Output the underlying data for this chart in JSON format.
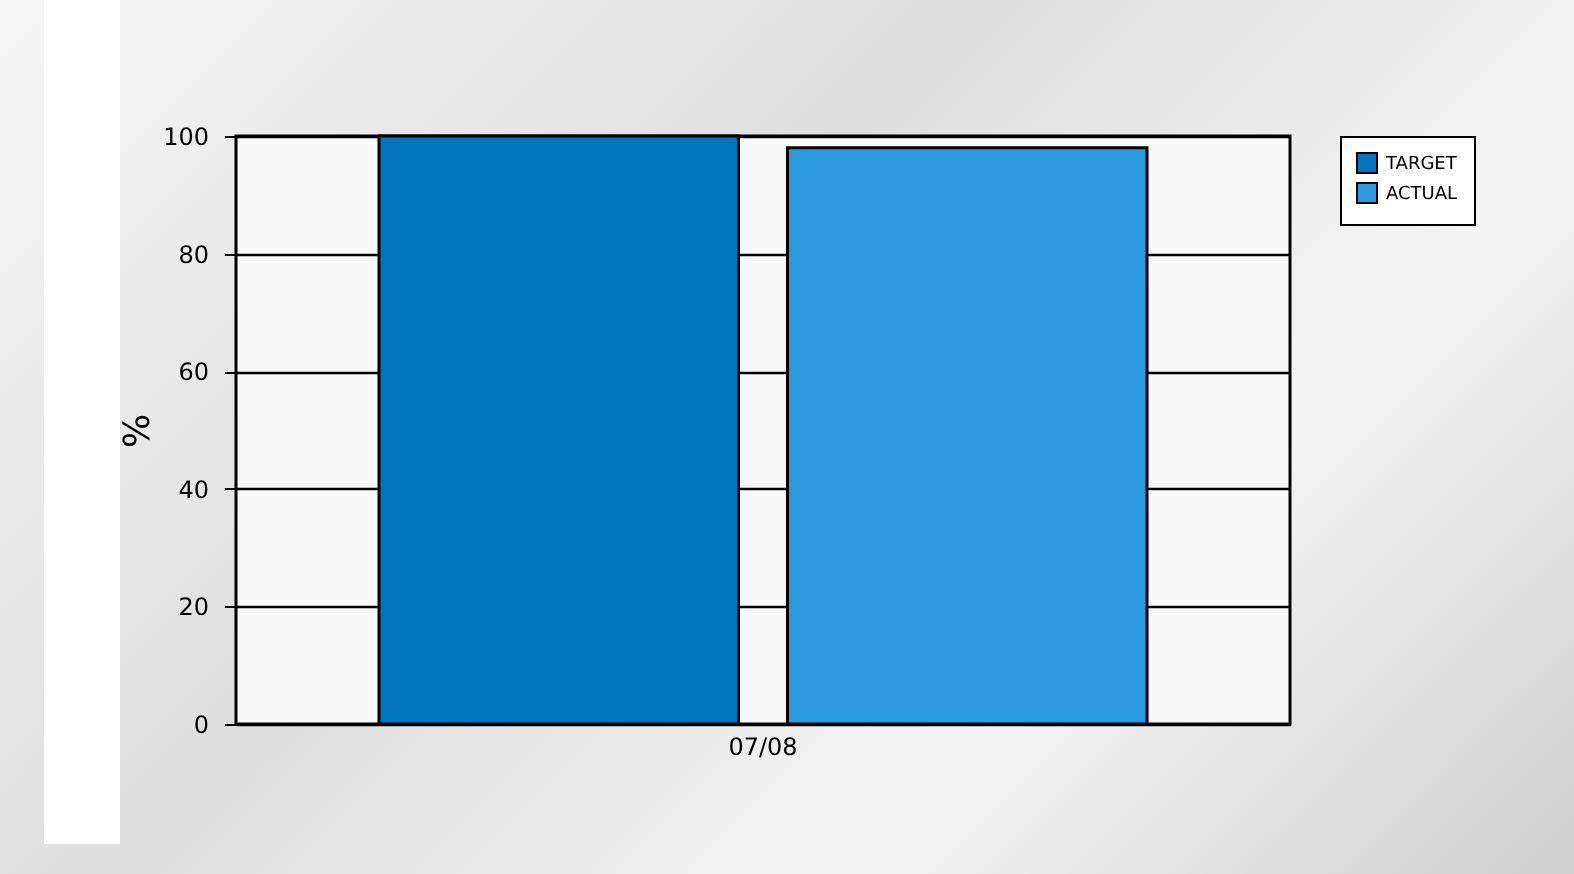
{
  "chart_data": {
    "type": "bar",
    "ylabel": "%",
    "categories": [
      "07/08"
    ],
    "series": [
      {
        "name": "TARGET",
        "color": "#0074bd",
        "values": [
          100
        ]
      },
      {
        "name": "ACTUAL",
        "color": "#2a9be0",
        "values": [
          98
        ]
      }
    ],
    "ylim": [
      0,
      100
    ],
    "yticks": [
      0,
      20,
      40,
      60,
      80,
      100
    ],
    "grid": "y",
    "legend": "right"
  }
}
